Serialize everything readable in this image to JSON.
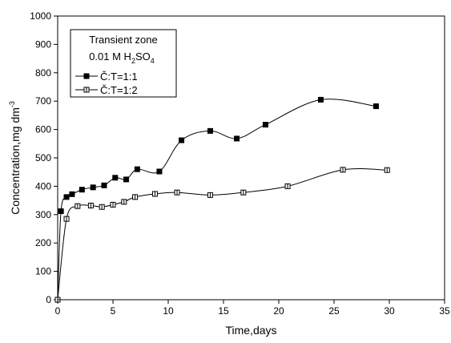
{
  "chart_data": {
    "type": "scatter",
    "xlabel": "Time,days",
    "ylabel_main": "Concentration,mg dm",
    "ylabel_sup": "-3",
    "xlim": [
      0,
      35
    ],
    "ylim": [
      0,
      1000
    ],
    "xticks": [
      0,
      5,
      10,
      15,
      20,
      25,
      30,
      35
    ],
    "yticks": [
      0,
      100,
      200,
      300,
      400,
      500,
      600,
      700,
      800,
      900,
      1000
    ],
    "grid": false,
    "legend": {
      "placement": "top-left",
      "line1": "Transient zone",
      "line2_prefix": "0.01 M H",
      "line2_sub1": "2",
      "line2_mid": "SO",
      "line2_sub2": "4"
    },
    "series": [
      {
        "name": "Č:T=1:1",
        "marker": "filled-square",
        "points": [
          [
            0.3,
            312
          ],
          [
            0.8,
            362
          ],
          [
            1.3,
            372
          ],
          [
            2.2,
            388
          ],
          [
            3.2,
            396
          ],
          [
            4.2,
            403
          ],
          [
            5.2,
            430
          ],
          [
            6.2,
            424
          ],
          [
            7.2,
            460
          ],
          [
            9.2,
            452
          ],
          [
            11.2,
            562
          ],
          [
            13.8,
            595
          ],
          [
            16.2,
            568
          ],
          [
            18.8,
            617
          ],
          [
            23.8,
            705
          ],
          [
            28.8,
            682
          ]
        ]
      },
      {
        "name": "Č:T=1:2",
        "marker": "half-square",
        "points": [
          [
            0.0,
            0
          ],
          [
            0.8,
            285
          ],
          [
            1.8,
            330
          ],
          [
            3.0,
            332
          ],
          [
            4.0,
            327
          ],
          [
            5.0,
            335
          ],
          [
            6.0,
            345
          ],
          [
            7.0,
            362
          ],
          [
            8.8,
            373
          ],
          [
            10.8,
            378
          ],
          [
            13.8,
            369
          ],
          [
            16.8,
            378
          ],
          [
            20.8,
            400
          ],
          [
            25.8,
            458
          ],
          [
            29.8,
            457
          ]
        ]
      }
    ]
  }
}
